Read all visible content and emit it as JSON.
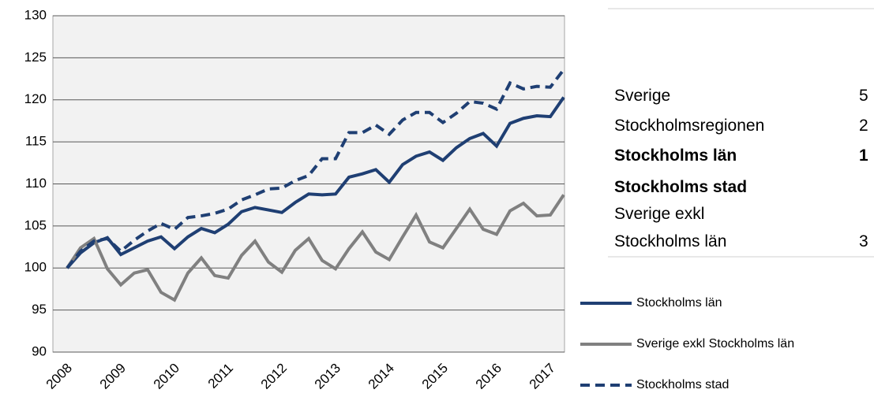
{
  "chart_data": {
    "type": "line",
    "categories": [
      "2008",
      null,
      null,
      null,
      "2009",
      null,
      null,
      null,
      "2010",
      null,
      null,
      null,
      "2011",
      null,
      null,
      null,
      "2012",
      null,
      null,
      null,
      "2013",
      null,
      null,
      null,
      "2014",
      null,
      null,
      null,
      "2015",
      null,
      null,
      null,
      "2016",
      null,
      null,
      null,
      "2017",
      null
    ],
    "series": [
      {
        "name": "Stockholms län",
        "color": "#1f3f73",
        "dashed": false,
        "values": [
          100,
          101.8,
          103,
          103.6,
          101.6,
          102.4,
          103.2,
          103.7,
          102.3,
          103.7,
          104.7,
          104.2,
          105.2,
          106.7,
          107.2,
          106.9,
          106.6,
          107.8,
          108.8,
          108.7,
          108.8,
          110.8,
          111.2,
          111.7,
          110.2,
          112.3,
          113.3,
          113.8,
          112.8,
          114.3,
          115.4,
          116.0,
          114.5,
          117.2,
          117.8,
          118.1,
          118.0,
          120.3
        ]
      },
      {
        "name": "Sverige exkl Stockholms län",
        "color": "#808080",
        "dashed": false,
        "values": [
          100,
          102.4,
          103.5,
          99.9,
          98.0,
          99.4,
          99.8,
          97.1,
          96.2,
          99.4,
          101.2,
          99.1,
          98.8,
          101.5,
          103.2,
          100.7,
          99.5,
          102.1,
          103.5,
          100.9,
          99.9,
          102.3,
          104.3,
          101.9,
          101.0,
          103.7,
          106.3,
          103.1,
          102.4,
          104.7,
          107.0,
          104.6,
          104.0,
          106.8,
          107.7,
          106.2,
          106.3,
          108.7
        ]
      },
      {
        "name": "Stockholms stad",
        "color": "#1f3f73",
        "dashed": true,
        "values": [
          100,
          102,
          103.2,
          103.5,
          102.0,
          103.3,
          104.4,
          105.3,
          104.6,
          106.0,
          106.2,
          106.5,
          107.0,
          108.1,
          108.7,
          109.4,
          109.5,
          110.4,
          111.0,
          113.0,
          113.0,
          116.1,
          116.1,
          117.0,
          115.9,
          117.6,
          118.5,
          118.5,
          117.3,
          118.4,
          119.8,
          119.6,
          118.9,
          122.0,
          121.3,
          121.6,
          121.5,
          123.6
        ]
      }
    ],
    "ylim": [
      90,
      130
    ],
    "yticks": [
      90,
      95,
      100,
      105,
      110,
      115,
      120,
      125,
      130
    ],
    "grid": true,
    "legend": "bottom-right"
  },
  "table": {
    "rows": [
      [
        "Sverige",
        "5"
      ],
      [
        "Stockholmsregionen",
        "2"
      ],
      [
        "Stockholms län",
        "1"
      ],
      [
        "Stockholms stad",
        null
      ],
      [
        "Sverige exkl\nStockholms län",
        "3"
      ]
    ]
  }
}
